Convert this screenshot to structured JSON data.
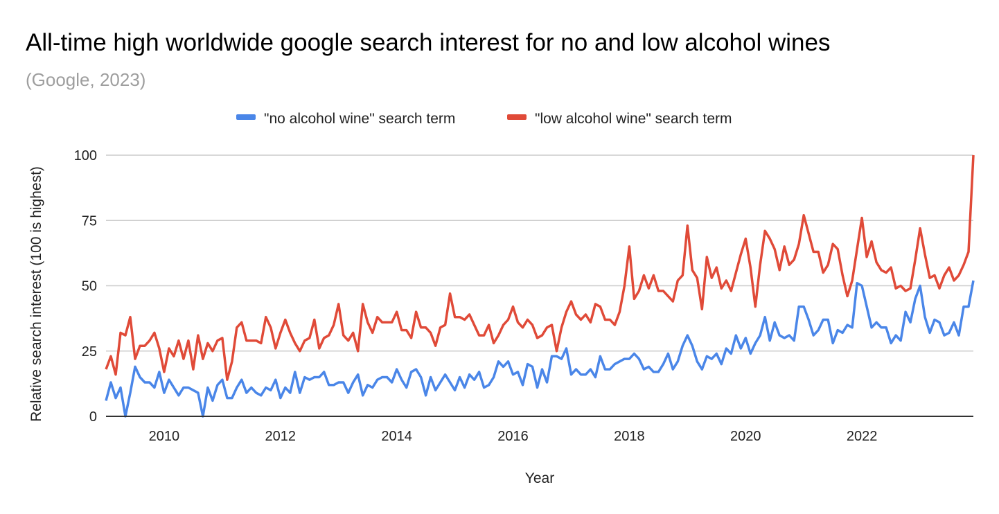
{
  "chart_data": {
    "type": "line",
    "title": "All-time high worldwide google search interest for no and low alcohol wines",
    "subtitle": "(Google, 2023)",
    "xlabel": "Year",
    "ylabel": "Relative search interest (100 is highest)",
    "ylim": [
      0,
      100
    ],
    "yticks": [
      "0",
      "25",
      "50",
      "75",
      "100"
    ],
    "xticks": [
      "2010",
      "2012",
      "2014",
      "2016",
      "2018",
      "2020",
      "2022"
    ],
    "x_start": "2009-01",
    "x_frequency": "monthly",
    "grid": true,
    "legend_position": "top",
    "series": [
      {
        "name": "\"no alcohol wine\" search term",
        "color": "#4a86e8",
        "values": [
          6,
          13,
          7,
          11,
          0,
          9,
          19,
          15,
          13,
          13,
          11,
          17,
          9,
          14,
          11,
          8,
          11,
          11,
          10,
          9,
          0,
          11,
          6,
          12,
          14,
          7,
          7,
          11,
          14,
          9,
          11,
          9,
          8,
          11,
          10,
          14,
          7,
          11,
          9,
          17,
          9,
          15,
          14,
          15,
          15,
          17,
          12,
          12,
          13,
          13,
          9,
          13,
          16,
          8,
          12,
          11,
          14,
          15,
          15,
          13,
          18,
          14,
          11,
          17,
          18,
          15,
          8,
          15,
          10,
          13,
          16,
          13,
          10,
          15,
          11,
          16,
          14,
          17,
          11,
          12,
          15,
          21,
          19,
          21,
          16,
          17,
          12,
          20,
          19,
          11,
          18,
          13,
          23,
          23,
          22,
          26,
          16,
          18,
          16,
          16,
          18,
          15,
          23,
          18,
          18,
          20,
          21,
          22,
          22,
          24,
          22,
          18,
          19,
          17,
          17,
          20,
          24,
          18,
          21,
          27,
          31,
          27,
          21,
          18,
          23,
          22,
          24,
          20,
          26,
          24,
          31,
          26,
          30,
          24,
          28,
          31,
          38,
          29,
          36,
          31,
          30,
          31,
          29,
          42,
          42,
          37,
          31,
          33,
          37,
          37,
          28,
          33,
          32,
          35,
          34,
          51,
          50,
          42,
          34,
          36,
          34,
          34,
          28,
          31,
          29,
          40,
          36,
          45,
          50,
          38,
          32,
          37,
          36,
          31,
          32,
          36,
          31,
          42,
          42,
          52
        ]
      },
      {
        "name": "\"low alcohol wine\" search term",
        "color": "#e04a38",
        "values": [
          18,
          23,
          16,
          32,
          31,
          38,
          22,
          27,
          27,
          29,
          32,
          26,
          17,
          26,
          23,
          29,
          22,
          29,
          18,
          31,
          22,
          28,
          25,
          29,
          30,
          14,
          21,
          34,
          36,
          29,
          29,
          29,
          28,
          38,
          34,
          26,
          32,
          37,
          32,
          28,
          25,
          29,
          30,
          37,
          26,
          30,
          31,
          35,
          43,
          31,
          29,
          32,
          25,
          43,
          36,
          32,
          38,
          36,
          36,
          36,
          40,
          33,
          33,
          30,
          40,
          34,
          34,
          32,
          27,
          34,
          35,
          47,
          38,
          38,
          37,
          39,
          35,
          31,
          31,
          35,
          28,
          31,
          35,
          37,
          42,
          36,
          34,
          37,
          35,
          30,
          31,
          34,
          35,
          25,
          34,
          40,
          44,
          39,
          37,
          39,
          36,
          43,
          42,
          37,
          37,
          35,
          40,
          50,
          65,
          45,
          48,
          54,
          49,
          54,
          48,
          48,
          46,
          44,
          52,
          54,
          73,
          56,
          53,
          41,
          61,
          53,
          57,
          49,
          52,
          48,
          55,
          62,
          68,
          57,
          42,
          58,
          71,
          68,
          64,
          56,
          65,
          58,
          60,
          66,
          77,
          70,
          63,
          63,
          55,
          58,
          66,
          64,
          54,
          46,
          52,
          64,
          76,
          61,
          67,
          59,
          56,
          55,
          57,
          49,
          50,
          48,
          49,
          60,
          72,
          62,
          53,
          54,
          49,
          54,
          57,
          52,
          54,
          58,
          63,
          100
        ]
      }
    ]
  }
}
